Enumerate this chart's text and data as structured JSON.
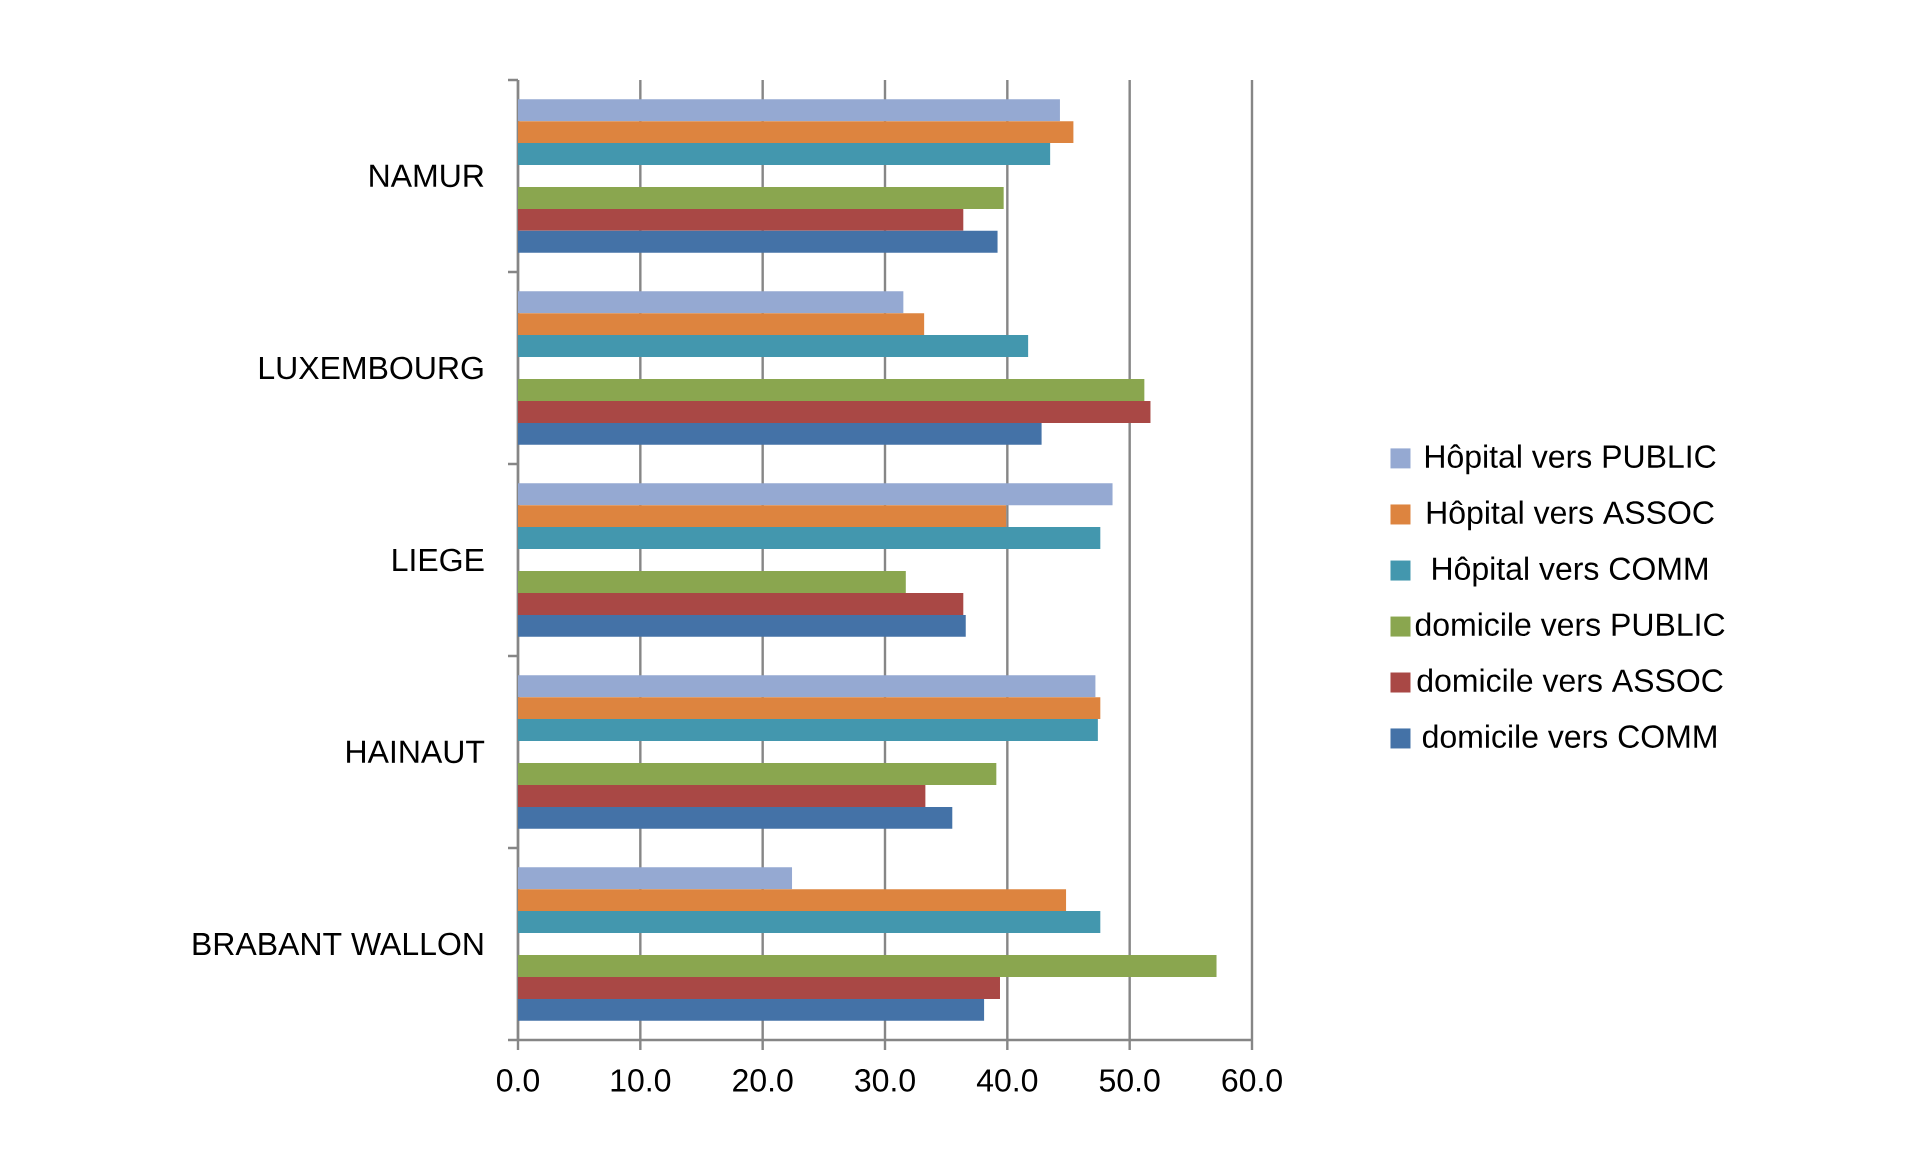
{
  "chart_data": {
    "type": "bar",
    "orientation": "horizontal",
    "categories": [
      "NAMUR",
      "LUXEMBOURG",
      "LIEGE",
      "HAINAUT",
      "BRABANT WALLON"
    ],
    "series": [
      {
        "name": "Hôpital vers PUBLIC",
        "color": "#95a9d2",
        "values": [
          44.3,
          31.5,
          48.6,
          47.2,
          22.4
        ]
      },
      {
        "name": "Hôpital vers ASSOC",
        "color": "#dd843f",
        "values": [
          45.4,
          33.2,
          39.9,
          47.6,
          44.8
        ]
      },
      {
        "name": "Hôpital vers COMM",
        "color": "#4397ae",
        "values": [
          43.5,
          41.7,
          47.6,
          47.4,
          47.6
        ]
      },
      {
        "name": "domicile vers PUBLIC",
        "color": "#8aa64f",
        "values": [
          39.7,
          51.2,
          31.7,
          39.1,
          57.1
        ]
      },
      {
        "name": "domicile vers ASSOC",
        "color": "#a94845",
        "values": [
          36.4,
          51.7,
          36.4,
          33.3,
          39.4
        ]
      },
      {
        "name": "domicile vers COMM",
        "color": "#4472a7",
        "values": [
          39.2,
          42.8,
          36.6,
          35.5,
          38.1
        ]
      }
    ],
    "xlim": [
      0,
      60
    ],
    "xticks": [
      {
        "value": 0,
        "label": "0.0"
      },
      {
        "value": 10,
        "label": "10.0"
      },
      {
        "value": 20,
        "label": "20.0"
      },
      {
        "value": 30,
        "label": "30.0"
      },
      {
        "value": 40,
        "label": "40.0"
      },
      {
        "value": 50,
        "label": "50.0"
      },
      {
        "value": 60,
        "label": "60.0"
      }
    ],
    "grid": "x",
    "legend": "right"
  }
}
